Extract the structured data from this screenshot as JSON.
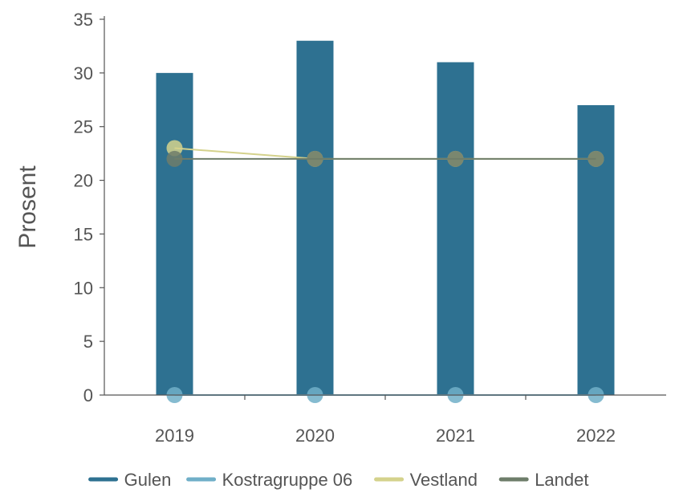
{
  "chart_data": {
    "type": "bar",
    "categories": [
      "2019",
      "2020",
      "2021",
      "2022"
    ],
    "ylabel": "Prosent",
    "xlabel": "",
    "ylim": [
      0,
      35
    ],
    "yticks": [
      0,
      5,
      10,
      15,
      20,
      25,
      30,
      35
    ],
    "grid": false,
    "legend_position": "bottom",
    "series": [
      {
        "name": "Gulen",
        "kind": "bar",
        "color": "#2e7191",
        "values": [
          30,
          33,
          31,
          27
        ]
      },
      {
        "name": "Kostragruppe 06",
        "kind": "line",
        "color": "#70afc8",
        "values": [
          0,
          0,
          0,
          0
        ]
      },
      {
        "name": "Vestland",
        "kind": "line",
        "color": "#d4d28c",
        "values": [
          23,
          22,
          22,
          22
        ]
      },
      {
        "name": "Landet",
        "kind": "line",
        "color": "#6e7d6a",
        "values": [
          22,
          22,
          22,
          22
        ]
      }
    ]
  }
}
